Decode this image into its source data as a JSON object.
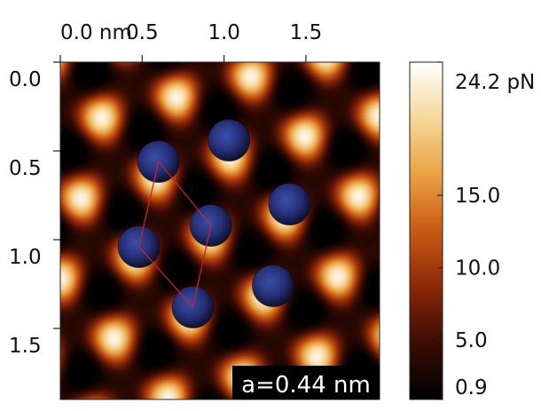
{
  "chart_data": {
    "type": "heatmap",
    "x_ticks": [
      {
        "value": 0.0,
        "label": "0.0 nm"
      },
      {
        "value": 0.5,
        "label": "0.5"
      },
      {
        "value": 1.0,
        "label": "1.0"
      },
      {
        "value": 1.5,
        "label": "1.5"
      }
    ],
    "y_ticks": [
      {
        "value": 0.0,
        "label": "0.0"
      },
      {
        "value": 0.5,
        "label": "0.5"
      },
      {
        "value": 1.0,
        "label": "1.0"
      },
      {
        "value": 1.5,
        "label": "1.5"
      }
    ],
    "xlim": [
      0.0,
      1.95
    ],
    "ylim": [
      0.0,
      1.9
    ],
    "colorbar": {
      "range": [
        0.9,
        24.2
      ],
      "ticks": [
        {
          "value": 24.2,
          "label": "24.2 pN"
        },
        {
          "value": 15.0,
          "label": "15.0"
        },
        {
          "value": 10.0,
          "label": "10.0"
        },
        {
          "value": 5.0,
          "label": "5.0"
        },
        {
          "value": 0.9,
          "label": "0.9"
        }
      ],
      "colors": [
        "#000000",
        "#3a0c03",
        "#8b2708",
        "#c95a14",
        "#e9a244",
        "#f8d79a",
        "#ffffff"
      ]
    },
    "atoms": [
      {
        "x": 0.6,
        "y": 0.56
      },
      {
        "x": 1.03,
        "y": 0.44
      },
      {
        "x": 1.4,
        "y": 0.8
      },
      {
        "x": 0.92,
        "y": 0.92
      },
      {
        "x": 0.48,
        "y": 1.04
      },
      {
        "x": 1.3,
        "y": 1.26
      },
      {
        "x": 0.81,
        "y": 1.38
      }
    ],
    "cell": [
      {
        "x": 0.6,
        "y": 0.56
      },
      {
        "x": 0.92,
        "y": 0.92
      },
      {
        "x": 0.81,
        "y": 1.38
      },
      {
        "x": 0.48,
        "y": 1.04
      }
    ],
    "lattice_label": "a=0.44 nm"
  }
}
